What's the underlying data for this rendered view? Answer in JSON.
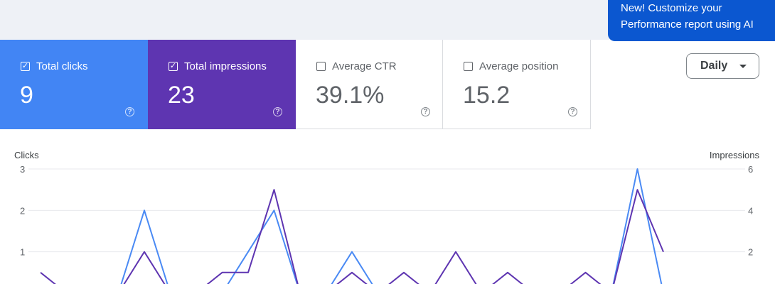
{
  "promo": {
    "line1": "New! Customize your",
    "line2": "Performance report using AI"
  },
  "metrics": [
    {
      "label": "Total clicks",
      "value": "9",
      "checked": true,
      "color": "#4285f4"
    },
    {
      "label": "Total impressions",
      "value": "23",
      "checked": true,
      "color": "#5e35b1"
    },
    {
      "label": "Average CTR",
      "value": "39.1%",
      "checked": false,
      "color": "#ffffff"
    },
    {
      "label": "Average position",
      "value": "15.2",
      "checked": false,
      "color": "#ffffff"
    }
  ],
  "period_select": {
    "label": "Daily",
    "icon": "arrow-drop-down-icon"
  },
  "icons": {
    "checkbox": "checkbox-icon",
    "help": "help-outline-icon"
  },
  "chart_data": {
    "type": "line",
    "left_axis": {
      "label": "Clicks",
      "ticks": [
        "1",
        "2",
        "3"
      ],
      "range": [
        0,
        3
      ]
    },
    "right_axis": {
      "label": "Impressions",
      "ticks": [
        "2",
        "4",
        "6"
      ],
      "range": [
        0,
        6
      ]
    },
    "grid": true,
    "series": [
      {
        "key": "clicks",
        "color": "#4a8af4",
        "axis": "left",
        "values": [
          0,
          0,
          0,
          0,
          2,
          0,
          0,
          0,
          1,
          2,
          0,
          0,
          1,
          0,
          0,
          0,
          0,
          0,
          0,
          0,
          0,
          0,
          0,
          3,
          0
        ]
      },
      {
        "key": "impressions",
        "color": "#5e35b1",
        "axis": "right",
        "values": [
          1,
          0,
          0,
          0,
          2,
          0,
          0,
          1,
          1,
          5,
          0,
          0,
          1,
          0,
          1,
          0,
          2,
          0,
          1,
          0,
          0,
          1,
          0,
          5,
          2
        ]
      }
    ]
  }
}
